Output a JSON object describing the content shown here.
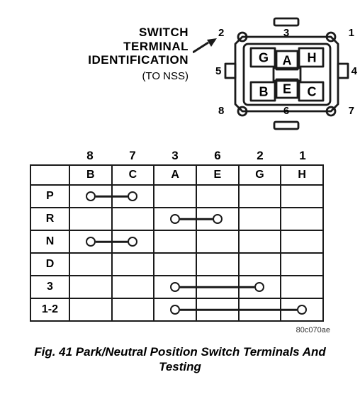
{
  "label": {
    "line1": "SWITCH",
    "line2": "TERMINAL",
    "line3": "IDENTIFICATION",
    "sub": "(TO NSS)"
  },
  "connector": {
    "pins": {
      "n1": "1",
      "n2": "2",
      "n3": "3",
      "n4": "4",
      "n5": "5",
      "n6": "6",
      "n7": "7",
      "n8": "8"
    },
    "terminals": {
      "A": "A",
      "B": "B",
      "C": "C",
      "E": "E",
      "G": "G",
      "H": "H"
    }
  },
  "table": {
    "col_pins": [
      "8",
      "7",
      "3",
      "6",
      "2",
      "1"
    ],
    "col_terms": [
      "B",
      "C",
      "A",
      "E",
      "G",
      "H"
    ],
    "rows": [
      {
        "label": "P",
        "continuity": [
          "B",
          "C"
        ]
      },
      {
        "label": "R",
        "continuity": [
          "A",
          "E"
        ]
      },
      {
        "label": "N",
        "continuity": [
          "B",
          "C"
        ]
      },
      {
        "label": "D",
        "continuity": []
      },
      {
        "label": "3",
        "continuity": [
          "A",
          "G"
        ]
      },
      {
        "label": "1-2",
        "continuity": [
          "A",
          "H"
        ]
      }
    ]
  },
  "reference": "80c070ae",
  "caption_l1": "Fig. 41 Park/Neutral Position Switch Terminals And",
  "caption_l2": "Testing",
  "style": {
    "stroke": "#1a1a1a",
    "stroke_w": 2.8,
    "circle_r": 5.5
  }
}
